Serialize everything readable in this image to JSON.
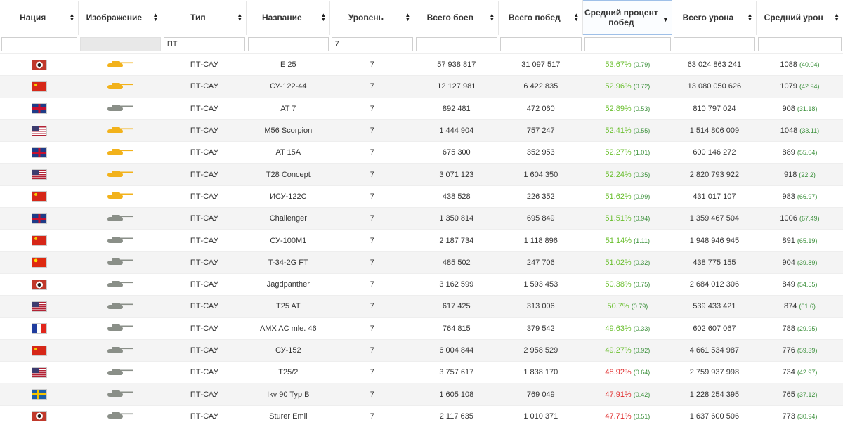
{
  "headers": [
    {
      "label": "Нация"
    },
    {
      "label": "Изображение"
    },
    {
      "label": "Тип"
    },
    {
      "label": "Название"
    },
    {
      "label": "Уровень"
    },
    {
      "label": "Всего боев"
    },
    {
      "label": "Всего побед"
    },
    {
      "label": "Средний процент побед"
    },
    {
      "label": "Всего урона"
    },
    {
      "label": "Средний урон"
    }
  ],
  "filters": {
    "nation": "",
    "image": "",
    "type": "ПТ",
    "name": "",
    "level": "7",
    "battles": "",
    "wins": "",
    "winrate": "",
    "damage": "",
    "avg_damage": ""
  },
  "colors": {
    "winrate_green": "#6abf2e",
    "winrate_red": "#e02b2b",
    "delta_green": "#3a8f3a",
    "tank_gold": "#f2b21b",
    "tank_gray": "#8a8f88"
  },
  "rows": [
    {
      "nation": "germany",
      "tank_color": "gold",
      "type": "ПТ-САУ",
      "name": "E 25",
      "level": "7",
      "battles": "57 938 817",
      "wins": "31 097 517",
      "winrate": "53.67%",
      "winrate_delta": "(0.79)",
      "damage": "63 024 863 241",
      "avg_damage": "1088",
      "avg_delta": "(40.04)"
    },
    {
      "nation": "ussr",
      "tank_color": "gold",
      "type": "ПТ-САУ",
      "name": "СУ-122-44",
      "level": "7",
      "battles": "12 127 981",
      "wins": "6 422 835",
      "winrate": "52.96%",
      "winrate_delta": "(0.72)",
      "damage": "13 080 050 626",
      "avg_damage": "1079",
      "avg_delta": "(42.94)"
    },
    {
      "nation": "uk",
      "tank_color": "gray",
      "type": "ПТ-САУ",
      "name": "AT 7",
      "level": "7",
      "battles": "892 481",
      "wins": "472 060",
      "winrate": "52.89%",
      "winrate_delta": "(0.53)",
      "damage": "810 797 024",
      "avg_damage": "908",
      "avg_delta": "(31.18)"
    },
    {
      "nation": "usa",
      "tank_color": "gold",
      "type": "ПТ-САУ",
      "name": "M56 Scorpion",
      "level": "7",
      "battles": "1 444 904",
      "wins": "757 247",
      "winrate": "52.41%",
      "winrate_delta": "(0.55)",
      "damage": "1 514 806 009",
      "avg_damage": "1048",
      "avg_delta": "(33.11)"
    },
    {
      "nation": "uk",
      "tank_color": "gold",
      "type": "ПТ-САУ",
      "name": "AT 15A",
      "level": "7",
      "battles": "675 300",
      "wins": "352 953",
      "winrate": "52.27%",
      "winrate_delta": "(1.01)",
      "damage": "600 146 272",
      "avg_damage": "889",
      "avg_delta": "(55.04)"
    },
    {
      "nation": "usa",
      "tank_color": "gold",
      "type": "ПТ-САУ",
      "name": "T28 Concept",
      "level": "7",
      "battles": "3 071 123",
      "wins": "1 604 350",
      "winrate": "52.24%",
      "winrate_delta": "(0.35)",
      "damage": "2 820 793 922",
      "avg_damage": "918",
      "avg_delta": "(22.2)"
    },
    {
      "nation": "ussr",
      "tank_color": "gold",
      "type": "ПТ-САУ",
      "name": "ИСУ-122С",
      "level": "7",
      "battles": "438 528",
      "wins": "226 352",
      "winrate": "51.62%",
      "winrate_delta": "(0.99)",
      "damage": "431 017 107",
      "avg_damage": "983",
      "avg_delta": "(66.97)"
    },
    {
      "nation": "uk",
      "tank_color": "gray",
      "type": "ПТ-САУ",
      "name": "Challenger",
      "level": "7",
      "battles": "1 350 814",
      "wins": "695 849",
      "winrate": "51.51%",
      "winrate_delta": "(0.94)",
      "damage": "1 359 467 504",
      "avg_damage": "1006",
      "avg_delta": "(67.49)"
    },
    {
      "nation": "ussr",
      "tank_color": "gray",
      "type": "ПТ-САУ",
      "name": "СУ-100М1",
      "level": "7",
      "battles": "2 187 734",
      "wins": "1 118 896",
      "winrate": "51.14%",
      "winrate_delta": "(1.11)",
      "damage": "1 948 946 945",
      "avg_damage": "891",
      "avg_delta": "(65.19)"
    },
    {
      "nation": "china",
      "tank_color": "gray",
      "type": "ПТ-САУ",
      "name": "T-34-2G FT",
      "level": "7",
      "battles": "485 502",
      "wins": "247 706",
      "winrate": "51.02%",
      "winrate_delta": "(0.32)",
      "damage": "438 775 155",
      "avg_damage": "904",
      "avg_delta": "(39.89)"
    },
    {
      "nation": "germany",
      "tank_color": "gray",
      "type": "ПТ-САУ",
      "name": "Jagdpanther",
      "level": "7",
      "battles": "3 162 599",
      "wins": "1 593 453",
      "winrate": "50.38%",
      "winrate_delta": "(0.75)",
      "damage": "2 684 012 306",
      "avg_damage": "849",
      "avg_delta": "(54.55)"
    },
    {
      "nation": "usa",
      "tank_color": "gray",
      "type": "ПТ-САУ",
      "name": "T25 AT",
      "level": "7",
      "battles": "617 425",
      "wins": "313 006",
      "winrate": "50.7%",
      "winrate_delta": "(0.79)",
      "damage": "539 433 421",
      "avg_damage": "874",
      "avg_delta": "(61.6)"
    },
    {
      "nation": "france",
      "tank_color": "gray",
      "type": "ПТ-САУ",
      "name": "AMX AC mle. 46",
      "level": "7",
      "battles": "764 815",
      "wins": "379 542",
      "winrate": "49.63%",
      "winrate_delta": "(0.33)",
      "damage": "602 607 067",
      "avg_damage": "788",
      "avg_delta": "(29.95)"
    },
    {
      "nation": "ussr",
      "tank_color": "gray",
      "type": "ПТ-САУ",
      "name": "СУ-152",
      "level": "7",
      "battles": "6 004 844",
      "wins": "2 958 529",
      "winrate": "49.27%",
      "winrate_delta": "(0.92)",
      "damage": "4 661 534 987",
      "avg_damage": "776",
      "avg_delta": "(59.39)"
    },
    {
      "nation": "usa",
      "tank_color": "gray",
      "type": "ПТ-САУ",
      "name": "T25/2",
      "level": "7",
      "battles": "3 757 617",
      "wins": "1 838 170",
      "winrate": "48.92%",
      "winrate_delta": "(0.64)",
      "damage": "2 759 937 998",
      "avg_damage": "734",
      "avg_delta": "(42.97)"
    },
    {
      "nation": "sweden",
      "tank_color": "gray",
      "type": "ПТ-САУ",
      "name": "Ikv 90 Typ B",
      "level": "7",
      "battles": "1 605 108",
      "wins": "769 049",
      "winrate": "47.91%",
      "winrate_delta": "(0.42)",
      "damage": "1 228 254 395",
      "avg_damage": "765",
      "avg_delta": "(37.12)"
    },
    {
      "nation": "germany",
      "tank_color": "gray",
      "type": "ПТ-САУ",
      "name": "Sturer Emil",
      "level": "7",
      "battles": "2 117 635",
      "wins": "1 010 371",
      "winrate": "47.71%",
      "winrate_delta": "(0.51)",
      "damage": "1 637 600 506",
      "avg_damage": "773",
      "avg_delta": "(30.94)"
    }
  ]
}
